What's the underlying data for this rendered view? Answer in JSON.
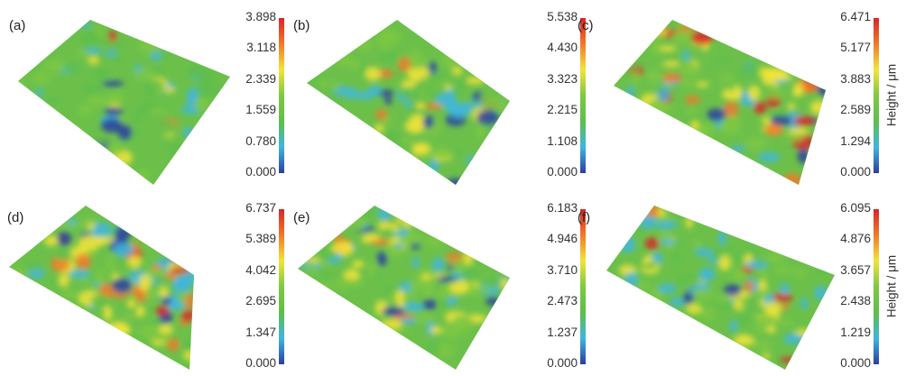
{
  "panels": [
    {
      "label": "(a)",
      "ticks": [
        "3.898",
        "3.118",
        "2.339",
        "1.559",
        "0.780",
        "0.000"
      ],
      "ylabel": ""
    },
    {
      "label": "(b)",
      "ticks": [
        "5.538",
        "4.430",
        "3.323",
        "2.215",
        "1.108",
        "0.000"
      ],
      "ylabel": ""
    },
    {
      "label": "(c)",
      "ticks": [
        "6.471",
        "5.177",
        "3.883",
        "2.589",
        "1.294",
        "0.000"
      ],
      "ylabel": "Height / μm"
    },
    {
      "label": "(d)",
      "ticks": [
        "6.737",
        "5.389",
        "4.042",
        "2.695",
        "1.347",
        "0.000"
      ],
      "ylabel": ""
    },
    {
      "label": "(e)",
      "ticks": [
        "6.183",
        "4.946",
        "3.710",
        "2.473",
        "1.237",
        "0.000"
      ],
      "ylabel": ""
    },
    {
      "label": "(f)",
      "ticks": [
        "6.095",
        "4.876",
        "3.657",
        "2.438",
        "1.219",
        "0.000"
      ],
      "ylabel": "Height / μm"
    }
  ],
  "colormap": [
    "#2b3ea0",
    "#3fb6e0",
    "#5fbe4a",
    "#7ec843",
    "#f2e43a",
    "#f07a2a",
    "#d9232a"
  ]
}
